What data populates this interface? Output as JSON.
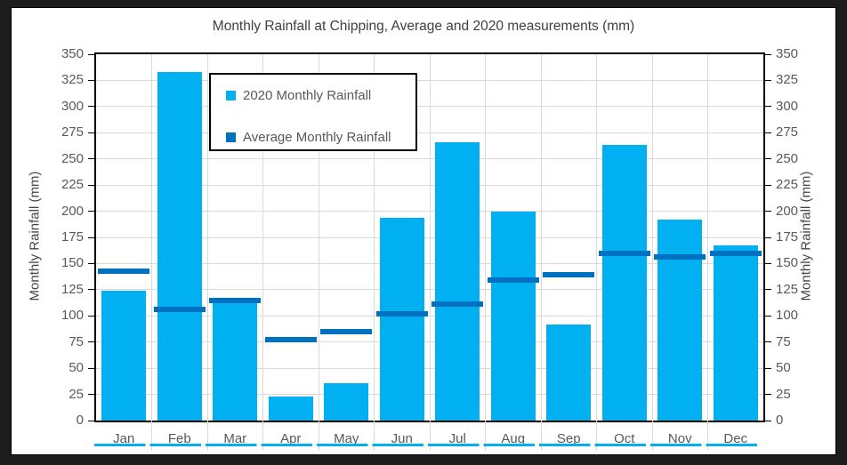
{
  "title": "Monthly Rainfall at Chipping, Average and 2020 measurements (mm)",
  "legend": {
    "items": [
      {
        "label": "2020 Monthly Rainfall",
        "color": "#00b0f0"
      },
      {
        "label": "Average Monthly Rainfall",
        "color": "#0070c0"
      }
    ]
  },
  "axes": {
    "left_title": "Monthly Rainfall (mm)",
    "right_title": "Monthly Rainfall (mm)",
    "y_min": 0,
    "y_max": 350,
    "y_step": 25
  },
  "chart_data": {
    "type": "bar",
    "title": "Monthly Rainfall at Chipping, Average and 2020 measurements (mm)",
    "categories": [
      "Jan",
      "Feb",
      "Mar",
      "Apr",
      "May",
      "Jun",
      "Jul",
      "Aug",
      "Sep",
      "Oct",
      "Nov",
      "Dec"
    ],
    "series": [
      {
        "name": "2020 Monthly Rainfall",
        "render": "bar",
        "color": "#00b0f0",
        "values": [
          124,
          333,
          114,
          23,
          36,
          194,
          266,
          200,
          92,
          263,
          192,
          167
        ]
      },
      {
        "name": "Average Monthly Rainfall",
        "render": "dash",
        "color": "#0070c0",
        "values": [
          143,
          106,
          115,
          77,
          85,
          102,
          111,
          134,
          139,
          160,
          156,
          160
        ]
      }
    ],
    "xlabel": "",
    "ylabel": "Monthly Rainfall (mm)",
    "ylim": [
      0,
      350
    ],
    "ytick_step": 25,
    "grid": true,
    "legend_position": "inside-top-left"
  },
  "colors": {
    "bar": "#00b0f0",
    "average_dash": "#0070c0",
    "gridline": "#d9d9d9",
    "axis_line": "#000000",
    "tick_text": "#595959",
    "title_text": "#404040",
    "outer_frame": "#1c1c1c",
    "bottom_strip": "#00b0f0"
  }
}
